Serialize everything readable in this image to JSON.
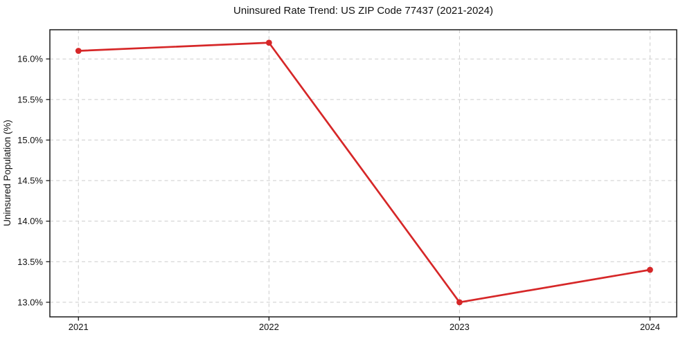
{
  "figure": {
    "title": "Uninsured Rate Trend: US ZIP Code 77437 (2021-2024)"
  },
  "chart_data": {
    "type": "line",
    "title": "Uninsured Rate Trend: US ZIP Code 77437 (2021-2024)",
    "xlabel": "",
    "ylabel": "Uninsured Population (%)",
    "x": [
      2021,
      2022,
      2023,
      2024
    ],
    "values": [
      16.1,
      16.2,
      13.0,
      13.4
    ],
    "unit": "%",
    "xticks": {
      "values": [
        2021,
        2022,
        2023,
        2024
      ],
      "labels": [
        "2021",
        "2022",
        "2023",
        "2024"
      ]
    },
    "yticks": {
      "values": [
        13.0,
        13.5,
        14.0,
        14.5,
        15.0,
        15.5,
        16.0
      ],
      "labels": [
        "13.0%",
        "13.5%",
        "14.0%",
        "14.5%",
        "15.0%",
        "15.5%",
        "16.0%"
      ]
    },
    "xlim": [
      2020.85,
      2024.14
    ],
    "ylim": [
      12.82,
      16.36
    ],
    "grid": {
      "visible": true,
      "style": "dashed",
      "color": "#cbcbcb"
    },
    "legend": {
      "visible": false
    },
    "style": {
      "line_color": "#d62728",
      "marker": "circle",
      "marker_color": "#d62728",
      "line_width": 2.7,
      "marker_radius": 4.4,
      "spine_color": "#1a1a1a",
      "tick_color": "#1a1a1a",
      "text_color": "#111111",
      "background": "#ffffff"
    }
  }
}
